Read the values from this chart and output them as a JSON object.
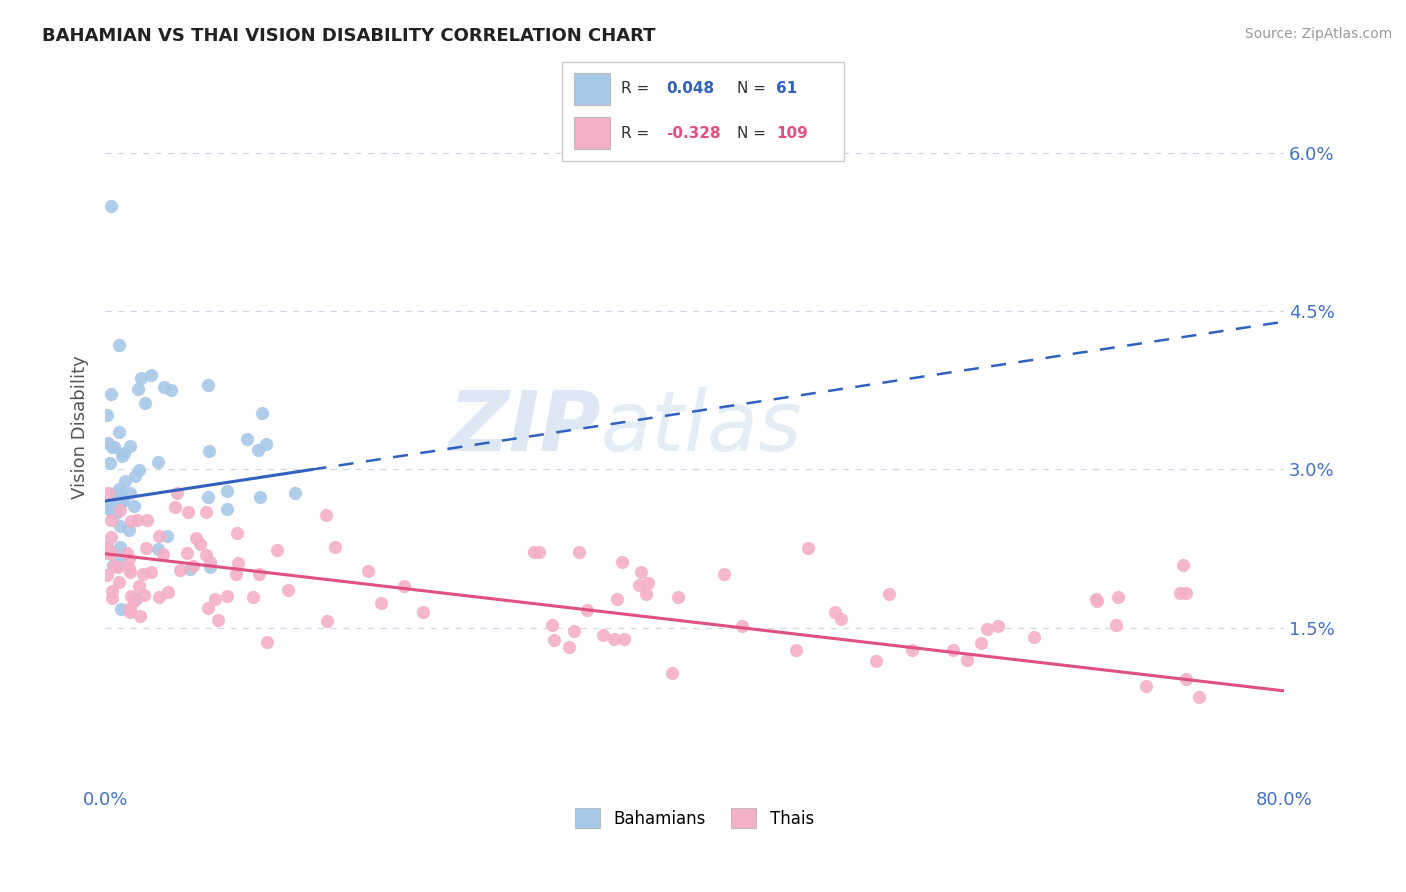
{
  "title": "BAHAMIAN VS THAI VISION DISABILITY CORRELATION CHART",
  "source": "Source: ZipAtlas.com",
  "ylabel": "Vision Disability",
  "xlim": [
    0.0,
    0.8
  ],
  "ylim": [
    0.0,
    0.068
  ],
  "xtick_labels": [
    "0.0%",
    "80.0%"
  ],
  "yticks": [
    0.015,
    0.03,
    0.045,
    0.06
  ],
  "ytick_labels": [
    "1.5%",
    "3.0%",
    "4.5%",
    "6.0%"
  ],
  "bahamian_color": "#a8c8e8",
  "thai_color": "#f4b0c8",
  "bahamian_line_color": "#3060c0",
  "thai_line_color": "#e05080",
  "legend_bahamian_label": "Bahamians",
  "legend_thai_label": "Thais",
  "R_bahamian": 0.048,
  "N_bahamian": 61,
  "R_thai": -0.328,
  "N_thai": 109,
  "watermark_zip": "ZIP",
  "watermark_atlas": "atlas",
  "grid_color": "#d0d8e8",
  "background_color": "#ffffff",
  "tick_color": "#4472c4",
  "label_color": "#555555"
}
